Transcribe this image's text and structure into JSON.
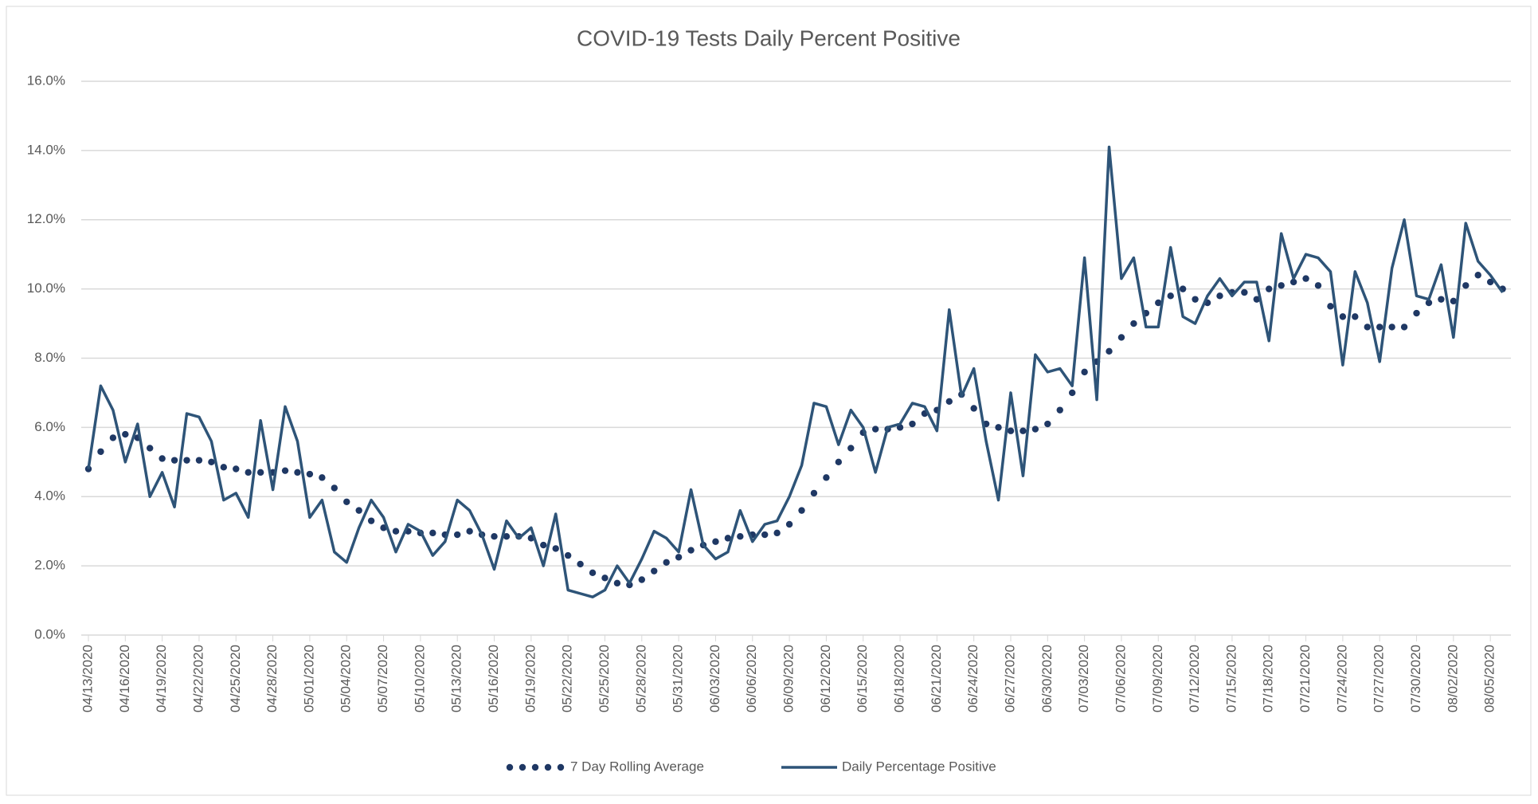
{
  "chart_data": {
    "type": "line",
    "title": "COVID-19 Tests Daily Percent Positive",
    "categories": [
      "04/13/2020",
      null,
      null,
      "04/16/2020",
      null,
      null,
      "04/19/2020",
      null,
      null,
      "04/22/2020",
      null,
      null,
      "04/25/2020",
      null,
      null,
      "04/28/2020",
      null,
      null,
      "05/01/2020",
      null,
      null,
      "05/04/2020",
      null,
      null,
      "05/07/2020",
      null,
      null,
      "05/10/2020",
      null,
      null,
      "05/13/2020",
      null,
      null,
      "05/16/2020",
      null,
      null,
      "05/19/2020",
      null,
      null,
      "05/22/2020",
      null,
      null,
      "05/25/2020",
      null,
      null,
      "05/28/2020",
      null,
      null,
      "05/31/2020",
      null,
      null,
      "06/03/2020",
      null,
      null,
      "06/06/2020",
      null,
      null,
      "06/09/2020",
      null,
      null,
      "06/12/2020",
      null,
      null,
      "06/15/2020",
      null,
      null,
      "06/18/2020",
      null,
      null,
      "06/21/2020",
      null,
      null,
      "06/24/2020",
      null,
      null,
      "06/27/2020",
      null,
      null,
      "06/30/2020",
      null,
      null,
      "07/03/2020",
      null,
      null,
      "07/06/2020",
      null,
      null,
      "07/09/2020",
      null,
      null,
      "07/12/2020",
      null,
      null,
      "07/15/2020",
      null,
      null,
      "07/18/2020",
      null,
      null,
      "07/21/2020",
      null,
      null,
      "07/24/2020",
      null,
      null,
      "07/27/2020",
      null,
      null,
      "07/30/2020",
      null,
      null,
      "08/02/2020",
      null,
      null,
      "08/05/2020",
      null
    ],
    "series": [
      {
        "name": "7 Day Rolling Average",
        "color": "#1f3864",
        "style": "dots",
        "values": [
          4.8,
          5.3,
          5.7,
          5.8,
          5.7,
          5.4,
          5.1,
          5.05,
          5.05,
          5.05,
          5.0,
          4.85,
          4.8,
          4.7,
          4.7,
          4.7,
          4.75,
          4.7,
          4.65,
          4.55,
          4.25,
          3.85,
          3.6,
          3.3,
          3.1,
          3.0,
          3.0,
          2.95,
          2.95,
          2.9,
          2.9,
          3.0,
          2.9,
          2.85,
          2.85,
          2.85,
          2.8,
          2.6,
          2.5,
          2.3,
          2.05,
          1.8,
          1.65,
          1.5,
          1.45,
          1.6,
          1.85,
          2.1,
          2.25,
          2.45,
          2.6,
          2.7,
          2.8,
          2.85,
          2.9,
          2.9,
          2.95,
          3.2,
          3.6,
          4.1,
          4.55,
          5.0,
          5.4,
          5.85,
          5.95,
          5.95,
          6.0,
          6.1,
          6.4,
          6.5,
          6.75,
          6.95,
          6.55,
          6.1,
          6.0,
          5.9,
          5.9,
          5.95,
          6.1,
          6.5,
          7.0,
          7.6,
          7.9,
          8.2,
          8.6,
          9.0,
          9.3,
          9.6,
          9.8,
          10.0,
          9.7,
          9.6,
          9.8,
          9.9,
          9.9,
          9.7,
          10.0,
          10.1,
          10.2,
          10.3,
          10.1,
          9.5,
          9.2,
          9.2,
          8.9,
          8.9,
          8.9,
          8.9,
          9.3,
          9.6,
          9.7,
          9.65,
          10.1,
          10.4,
          10.2,
          10.0
        ]
      },
      {
        "name": "Daily Percentage Positive",
        "color": "#2e5478",
        "style": "line",
        "values": [
          4.8,
          7.2,
          6.5,
          5.0,
          6.1,
          4.0,
          4.7,
          3.7,
          6.4,
          6.3,
          5.6,
          3.9,
          4.1,
          3.4,
          6.2,
          4.2,
          6.6,
          5.6,
          3.4,
          3.9,
          2.4,
          2.1,
          3.1,
          3.9,
          3.4,
          2.4,
          3.2,
          3.0,
          2.3,
          2.7,
          3.9,
          3.6,
          2.9,
          1.9,
          3.3,
          2.8,
          3.1,
          2.0,
          3.5,
          1.3,
          1.2,
          1.1,
          1.3,
          2.0,
          1.5,
          2.2,
          3.0,
          2.8,
          2.4,
          4.2,
          2.6,
          2.2,
          2.4,
          3.6,
          2.7,
          3.2,
          3.3,
          4.0,
          4.9,
          6.7,
          6.6,
          5.5,
          6.5,
          6.0,
          4.7,
          6.0,
          6.1,
          6.7,
          6.6,
          5.9,
          9.4,
          6.9,
          7.7,
          5.6,
          3.9,
          7.0,
          4.6,
          8.1,
          7.6,
          7.7,
          7.2,
          10.9,
          6.8,
          14.1,
          10.3,
          10.9,
          8.9,
          8.9,
          11.2,
          9.2,
          9.0,
          9.8,
          10.3,
          9.8,
          10.2,
          10.2,
          8.5,
          11.6,
          10.3,
          11.0,
          10.9,
          10.5,
          7.8,
          10.5,
          9.6,
          7.9,
          10.6,
          12.0,
          9.8,
          9.7,
          10.7,
          8.6,
          11.9,
          10.8,
          10.4,
          9.9
        ]
      }
    ],
    "ylim": [
      0,
      16
    ],
    "yticks": [
      {
        "value": 0,
        "label": "0.0%"
      },
      {
        "value": 2,
        "label": "2.0%"
      },
      {
        "value": 4,
        "label": "4.0%"
      },
      {
        "value": 6,
        "label": "6.0%"
      },
      {
        "value": 8,
        "label": "8.0%"
      },
      {
        "value": 10,
        "label": "10.0%"
      },
      {
        "value": 12,
        "label": "12.0%"
      },
      {
        "value": 14,
        "label": "14.0%"
      },
      {
        "value": 16,
        "label": "16.0%"
      }
    ],
    "grid": true,
    "legend": "bottom"
  }
}
